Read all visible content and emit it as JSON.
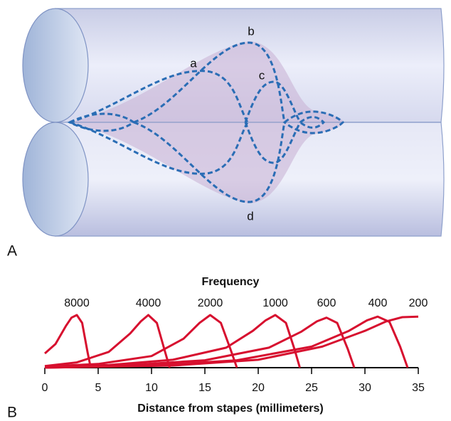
{
  "panel_a": {
    "label": "A",
    "wave_labels": [
      "a",
      "b",
      "c",
      "d"
    ]
  },
  "chart_data": {
    "type": "line",
    "panel_label": "B",
    "title": "Frequency",
    "x_label": "Distance from stapes (millimeters)",
    "xlim": [
      0,
      35
    ],
    "xticks": [
      0,
      5,
      10,
      15,
      20,
      25,
      30,
      35
    ],
    "series": [
      {
        "name": "8000",
        "color": "#d7102f",
        "x": [
          0,
          1,
          2,
          2.5,
          3,
          3.5,
          4,
          4.3
        ],
        "values": [
          0.27,
          0.45,
          0.8,
          0.95,
          1,
          0.85,
          0.3,
          0
        ]
      },
      {
        "name": "4000",
        "color": "#d7102f",
        "x": [
          0,
          3,
          6,
          8,
          9,
          9.7,
          10.5,
          11.2,
          11.7
        ],
        "values": [
          0.03,
          0.1,
          0.3,
          0.65,
          0.88,
          1,
          0.85,
          0.35,
          0
        ]
      },
      {
        "name": "2000",
        "color": "#d7102f",
        "x": [
          0,
          5,
          10,
          13,
          14.5,
          15.5,
          16.5,
          17.4,
          18
        ],
        "values": [
          0.02,
          0.07,
          0.22,
          0.55,
          0.85,
          1,
          0.85,
          0.35,
          0
        ]
      },
      {
        "name": "1000",
        "color": "#d7102f",
        "x": [
          0,
          6,
          12,
          17,
          19.5,
          20.7,
          21.6,
          22.6,
          23.4,
          23.9
        ],
        "values": [
          0.01,
          0.05,
          0.15,
          0.38,
          0.7,
          0.9,
          1,
          0.85,
          0.35,
          0
        ]
      },
      {
        "name": "600",
        "color": "#d7102f",
        "x": [
          0,
          8,
          15,
          21,
          24,
          25.5,
          26.4,
          27.4,
          28.4,
          29
        ],
        "values": [
          0.01,
          0.05,
          0.14,
          0.38,
          0.68,
          0.88,
          0.95,
          0.85,
          0.35,
          0
        ]
      },
      {
        "name": "400",
        "color": "#d7102f",
        "x": [
          0,
          10,
          18,
          25,
          28.5,
          30.2,
          31.2,
          32.3,
          33.3,
          34
        ],
        "values": [
          0,
          0.04,
          0.14,
          0.4,
          0.7,
          0.9,
          0.97,
          0.87,
          0.4,
          0
        ]
      },
      {
        "name": "200",
        "color": "#d7102f",
        "x": [
          0,
          12,
          20,
          26,
          30,
          32,
          33.5,
          35
        ],
        "values": [
          0,
          0.04,
          0.15,
          0.4,
          0.7,
          0.88,
          0.96,
          0.97
        ]
      }
    ]
  }
}
